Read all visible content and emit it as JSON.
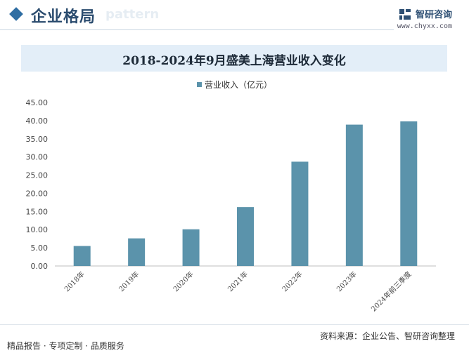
{
  "header": {
    "section_title": "企业格局",
    "section_title_bg": "pattern",
    "brand_name": "智研咨询",
    "brand_url": "www.chyxx.com",
    "brand_icon": "brand-logo-icon"
  },
  "colors": {
    "bar": "#5b93ab",
    "accent": "#2f6ea3",
    "title_band": "#e3eef8"
  },
  "chart_data": {
    "type": "bar",
    "title": "2018-2024年9月盛美上海营业收入变化",
    "legend_position": "top-center",
    "grid": false,
    "categories": [
      "2018年",
      "2019年",
      "2020年",
      "2021年",
      "2022年",
      "2023年",
      "2024年前三季度"
    ],
    "series": [
      {
        "name": "营业收入（亿元）",
        "values": [
          5.5,
          7.6,
          10.1,
          16.2,
          28.7,
          38.9,
          39.8
        ]
      }
    ],
    "ylim": [
      0,
      45
    ],
    "yticks": [
      "0.00",
      "5.00",
      "10.00",
      "15.00",
      "20.00",
      "25.00",
      "30.00",
      "35.00",
      "40.00",
      "45.00"
    ]
  },
  "footer": {
    "source": "资料来源：企业公告、智研咨询整理",
    "tagline": "精品报告 · 专项定制 · 品质服务"
  }
}
